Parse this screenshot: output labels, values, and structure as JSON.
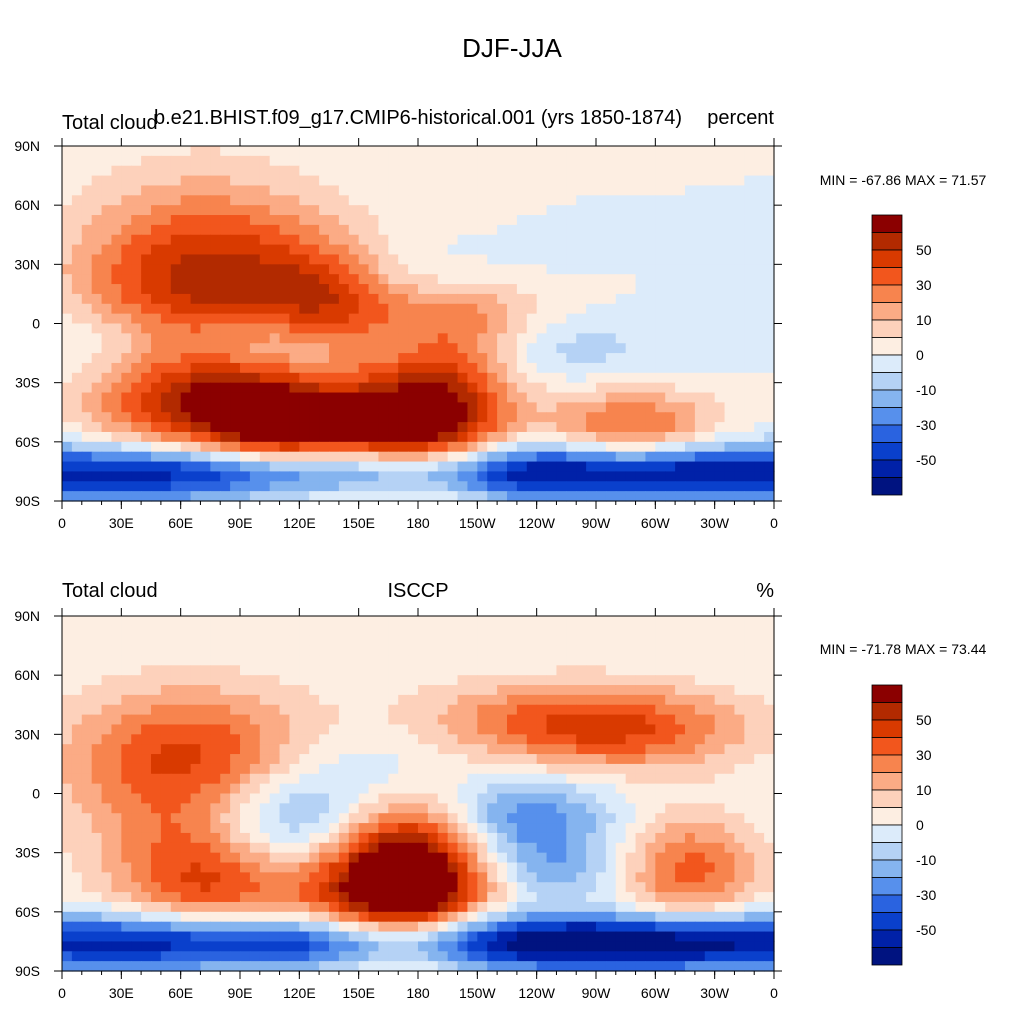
{
  "figure": {
    "title": "DJF-JJA",
    "x_tick_labels": [
      "0",
      "30E",
      "60E",
      "90E",
      "120E",
      "150E",
      "180",
      "150W",
      "120W",
      "90W",
      "60W",
      "30W",
      "0"
    ],
    "y_tick_labels": [
      "90N",
      "60N",
      "30N",
      "0",
      "30S",
      "60S",
      "90S"
    ]
  },
  "panels": [
    {
      "left_label": "Total cloud",
      "center_label": "b.e21.BHIST.f09_g17.CMIP6-historical.001 (yrs 1850-1874)",
      "right_label": "percent",
      "stats": "MIN = -67.86 MAX =  71.57"
    },
    {
      "left_label": "Total cloud",
      "center_label": "ISCCP",
      "right_label": "%",
      "stats": "MIN = -71.78 MAX =  73.44"
    }
  ],
  "colorbar": {
    "labels": [
      "50",
      "30",
      "10",
      "0",
      "-10",
      "-30",
      "-50"
    ],
    "colors": [
      "#8b0000",
      "#b22a00",
      "#d93a00",
      "#f2561d",
      "#f7844e",
      "#fbab85",
      "#fdd1bb",
      "#fdeee2",
      "#dcebfa",
      "#b5d2f5",
      "#85b4ef",
      "#5790ec",
      "#2a63e0",
      "#0a40cc",
      "#0021a8",
      "#001380"
    ]
  }
}
